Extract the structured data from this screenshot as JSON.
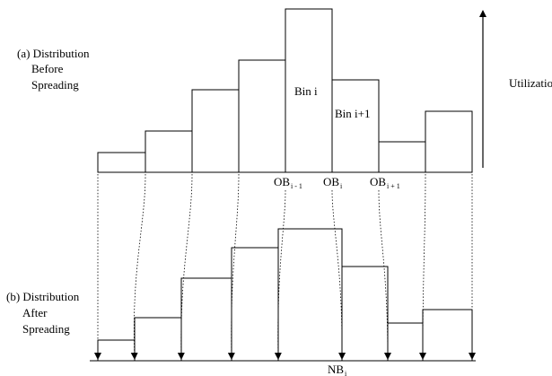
{
  "labels": {
    "before_line1": "(a) Distribution",
    "before_line2": "Before",
    "before_line3": "Spreading",
    "after_line1": "(b) Distribution",
    "after_line2": "After",
    "after_line3": "Spreading",
    "utilization": "Utilization",
    "bin_i": "Bin i",
    "bin_i_plus_1": "Bin i+1",
    "ob_prev_main": "OB",
    "ob_prev_sub": "i - 1",
    "ob_main": "OB",
    "ob_sub": "i",
    "ob_next_main": "OB",
    "ob_next_sub": "i + 1",
    "nb_main": "NB",
    "nb_sub": "i"
  },
  "colors": {
    "stroke": "#000000",
    "background": "#ffffff"
  }
}
